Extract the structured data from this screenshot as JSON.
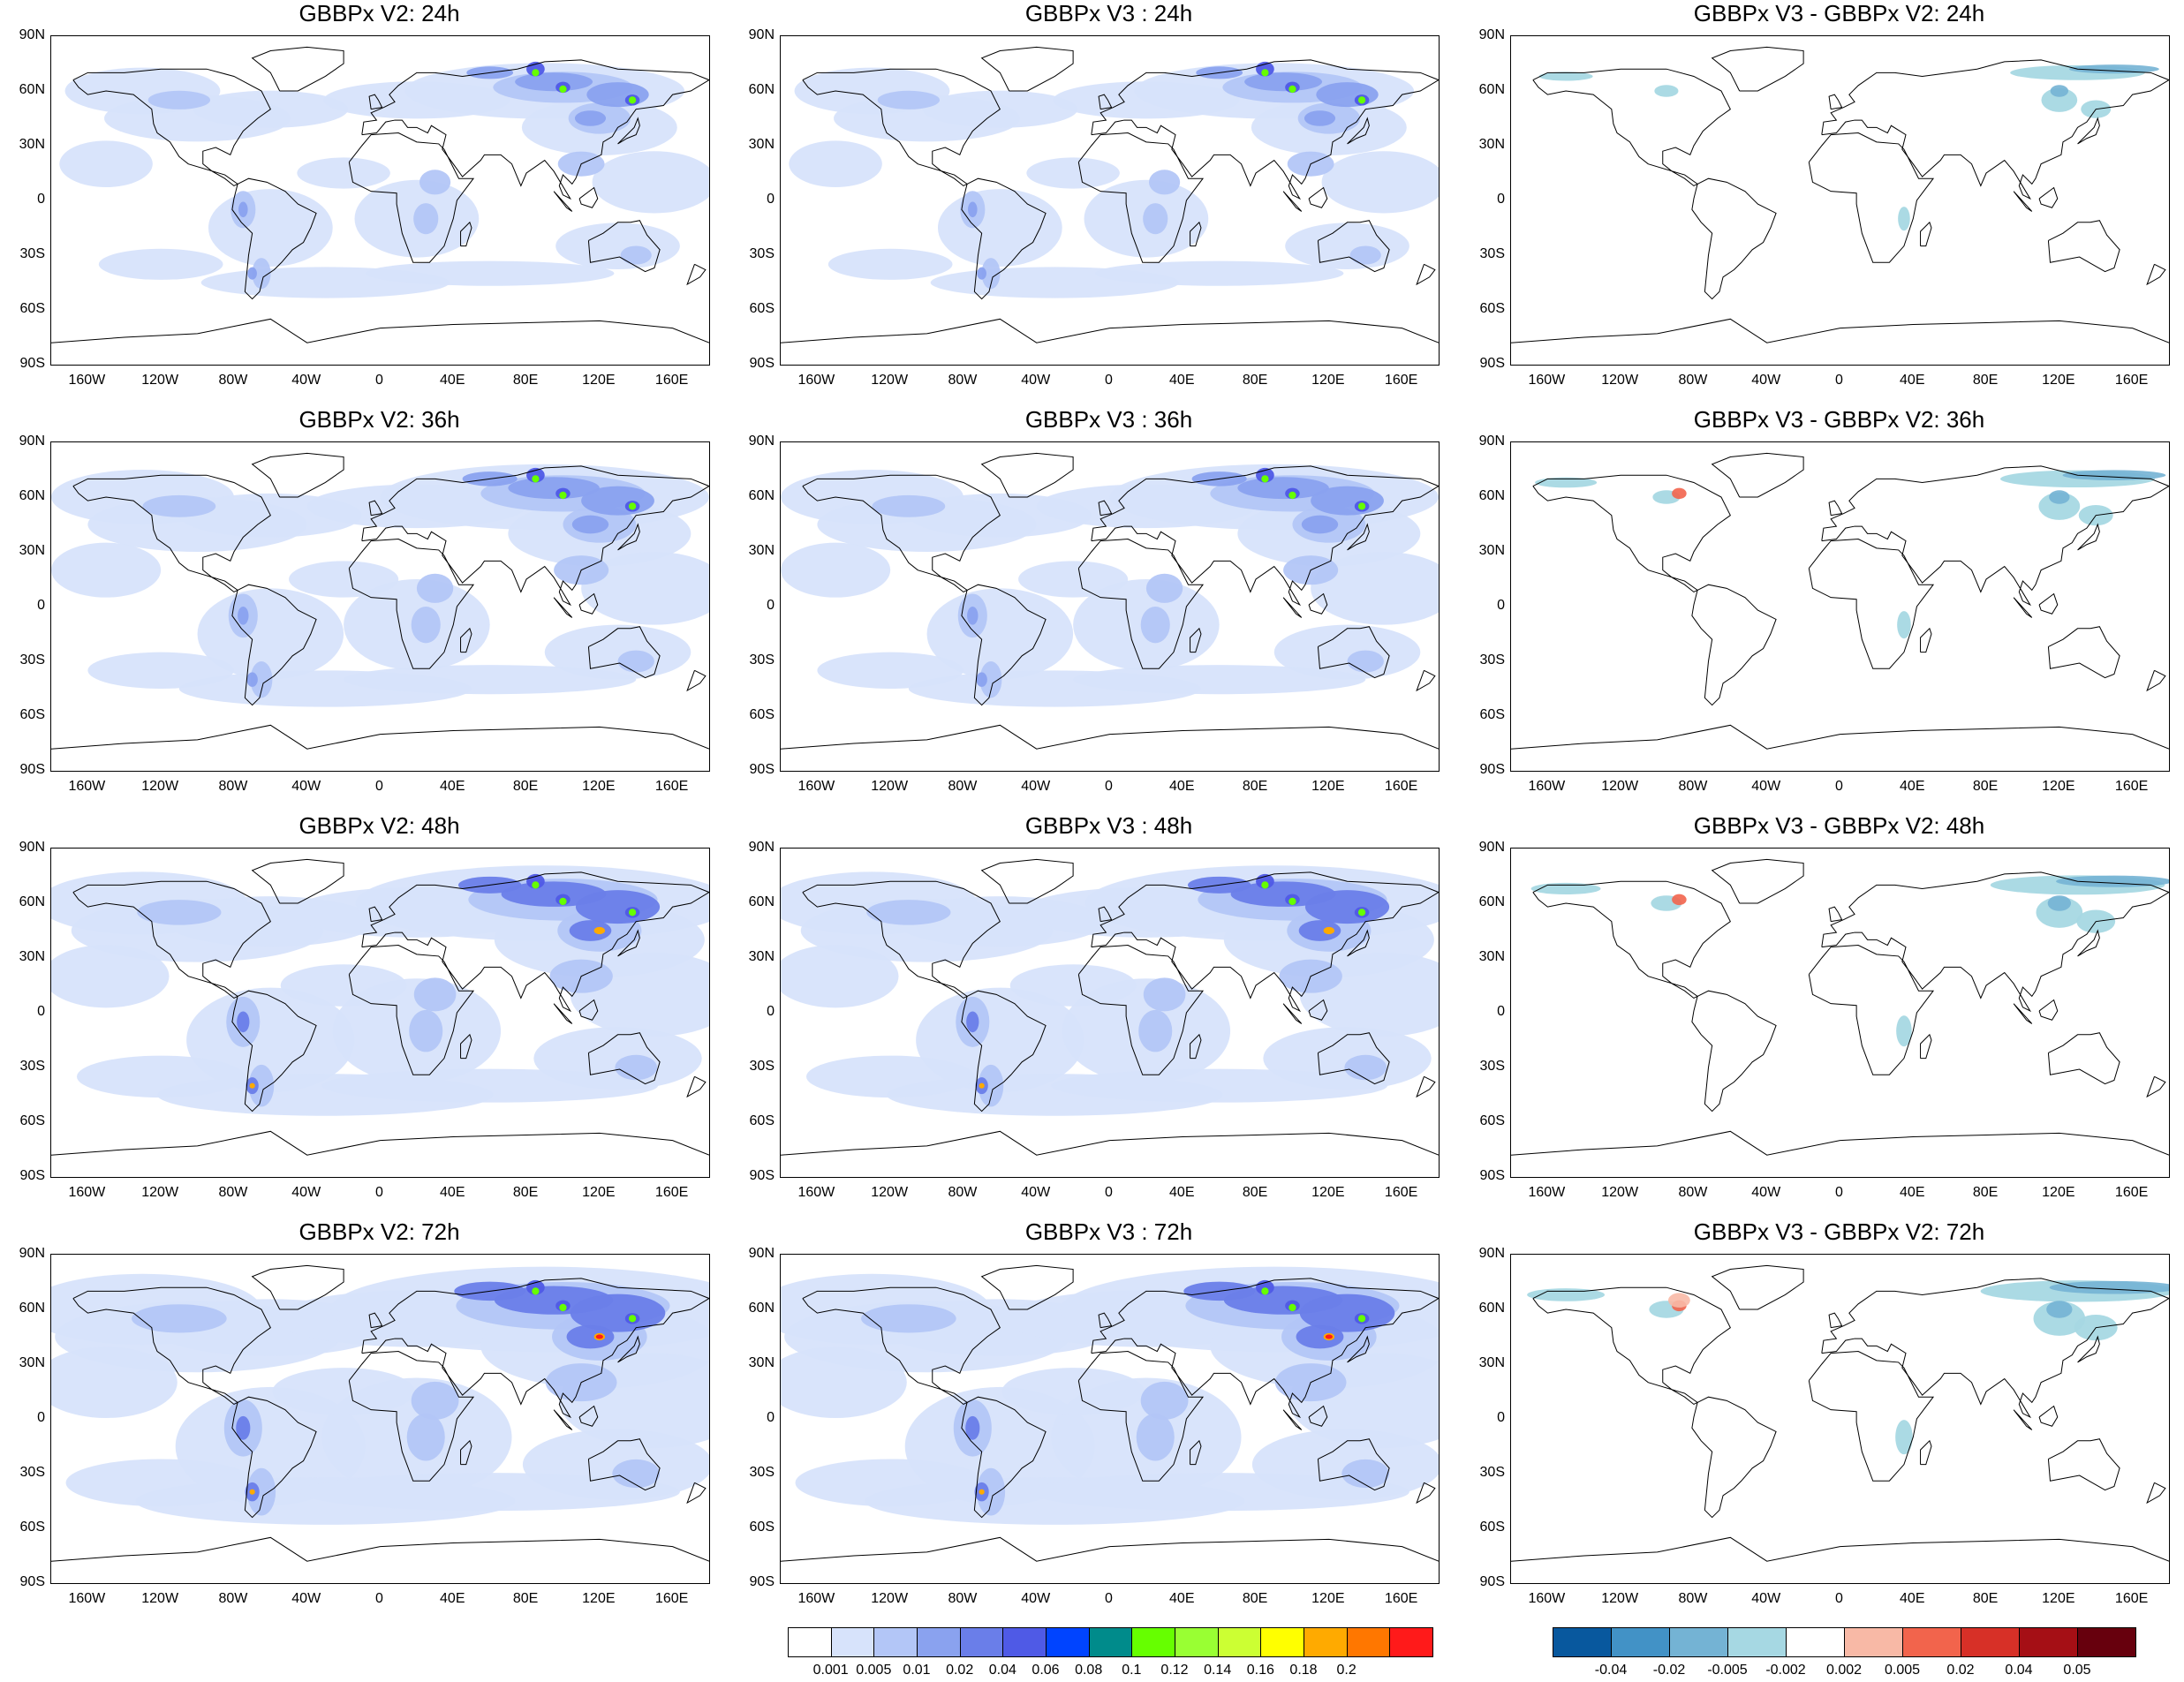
{
  "panels": [
    {
      "title": "GBBPx V2: 24h",
      "kind": "conc",
      "level": 1
    },
    {
      "title": "GBBPx V3 : 24h",
      "kind": "conc",
      "level": 1
    },
    {
      "title": "GBBPx V3 - GBBPx V2: 24h",
      "kind": "diff",
      "level": 1
    },
    {
      "title": "GBBPx V2: 36h",
      "kind": "conc",
      "level": 2
    },
    {
      "title": "GBBPx V3 : 36h",
      "kind": "conc",
      "level": 2
    },
    {
      "title": "GBBPx V3 - GBBPx V2: 36h",
      "kind": "diff",
      "level": 2
    },
    {
      "title": "GBBPx V2: 48h",
      "kind": "conc",
      "level": 3
    },
    {
      "title": "GBBPx V3 : 48h",
      "kind": "conc",
      "level": 3
    },
    {
      "title": "GBBPx V3 - GBBPx V2: 48h",
      "kind": "diff",
      "level": 3
    },
    {
      "title": "GBBPx V2: 72h",
      "kind": "conc",
      "level": 4
    },
    {
      "title": "GBBPx V3 : 72h",
      "kind": "conc",
      "level": 4
    },
    {
      "title": "GBBPx V3 - GBBPx V2: 72h",
      "kind": "diff",
      "level": 4
    }
  ],
  "lat_labels": [
    "90N",
    "60N",
    "30N",
    "0",
    "30S",
    "60S",
    "90S"
  ],
  "lon_labels": [
    "160W",
    "120W",
    "80W",
    "40W",
    "0",
    "40E",
    "80E",
    "120E",
    "160E"
  ],
  "conc_colorbar": {
    "colors": [
      "#ffffff",
      "#d7e3fb",
      "#b3c6f7",
      "#8aa2ef",
      "#6a7ee9",
      "#4f5ae6",
      "#0044ff",
      "#008b8b",
      "#66ff00",
      "#99ff33",
      "#ccff33",
      "#ffff00",
      "#ffaa00",
      "#ff7700",
      "#ff1a1a"
    ],
    "labels": [
      "0.001",
      "0.005",
      "0.01",
      "0.02",
      "0.04",
      "0.06",
      "0.08",
      "0.1",
      "0.12",
      "0.14",
      "0.16",
      "0.18",
      "0.2"
    ]
  },
  "diff_colorbar": {
    "colors": [
      "#08589e",
      "#4292c6",
      "#74b3d4",
      "#a6d8e3",
      "#ffffff",
      "#f8b9a6",
      "#f2644c",
      "#d73027",
      "#a50f15",
      "#67000d"
    ],
    "labels": [
      "-0.04",
      "-0.02",
      "-0.005",
      "-0.002",
      "0.002",
      "0.005",
      "0.02",
      "0.04",
      "0.05"
    ]
  }
}
